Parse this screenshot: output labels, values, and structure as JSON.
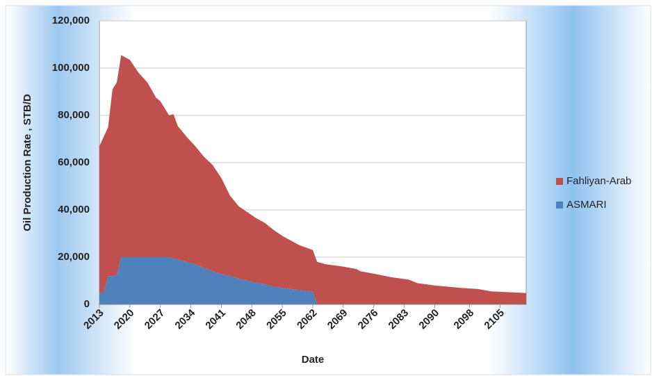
{
  "chart_data": {
    "type": "area",
    "stacked": true,
    "x_label": "Date",
    "y_label": "Oil Production Rate , STB/D",
    "x": [
      2013,
      2014,
      2015,
      2016,
      2017,
      2018,
      2020,
      2022,
      2024,
      2026,
      2027,
      2029,
      2030,
      2031,
      2033,
      2035,
      2037,
      2039,
      2041,
      2043,
      2045,
      2047,
      2049,
      2051,
      2053,
      2055,
      2057,
      2059,
      2062,
      2063,
      2065,
      2069,
      2072,
      2073,
      2076,
      2080,
      2084,
      2086,
      2090,
      2096,
      2100,
      2103,
      2111
    ],
    "series": [
      {
        "name": "Fahliyan-Arab",
        "color": "#c0504d",
        "values": [
          62000,
          66000,
          63000,
          79000,
          81500,
          85500,
          83500,
          78000,
          74000,
          67500,
          66000,
          60000,
          61000,
          56500,
          53000,
          50000,
          47000,
          45000,
          40700,
          34000,
          30500,
          29000,
          27300,
          26000,
          24000,
          22000,
          20500,
          19000,
          17500,
          18000,
          17000,
          16000,
          15000,
          14000,
          13000,
          11500,
          10500,
          9000,
          8000,
          7000,
          6500,
          5500,
          4800
        ]
      },
      {
        "name": "ASMARI",
        "color": "#4f81bd",
        "values": [
          5000,
          5000,
          12000,
          12000,
          12500,
          20000,
          20000,
          20000,
          20000,
          20000,
          20000,
          20000,
          19500,
          19000,
          18000,
          17000,
          15500,
          14000,
          12800,
          12000,
          11000,
          10000,
          9200,
          8500,
          7500,
          7000,
          6500,
          6000,
          5500,
          0,
          0,
          0,
          0,
          0,
          0,
          0,
          0,
          0,
          0,
          0,
          0,
          0,
          0
        ]
      }
    ],
    "xlim": [
      2013,
      2111
    ],
    "xticks": [
      2013,
      2020,
      2027,
      2034,
      2041,
      2048,
      2055,
      2062,
      2069,
      2076,
      2083,
      2090,
      2098,
      2105
    ],
    "ylim": [
      0,
      120000
    ],
    "yticks": [
      0,
      {
        "value": 20000,
        "label": "20,000"
      },
      {
        "value": 40000,
        "label": "40,000"
      },
      {
        "value": 60000,
        "label": "60,000"
      },
      {
        "value": 80000,
        "label": "80,000"
      },
      {
        "value": 100000,
        "label": "100,000"
      },
      {
        "value": 120000,
        "label": "120,000"
      }
    ],
    "grid": true,
    "legend": "right"
  }
}
